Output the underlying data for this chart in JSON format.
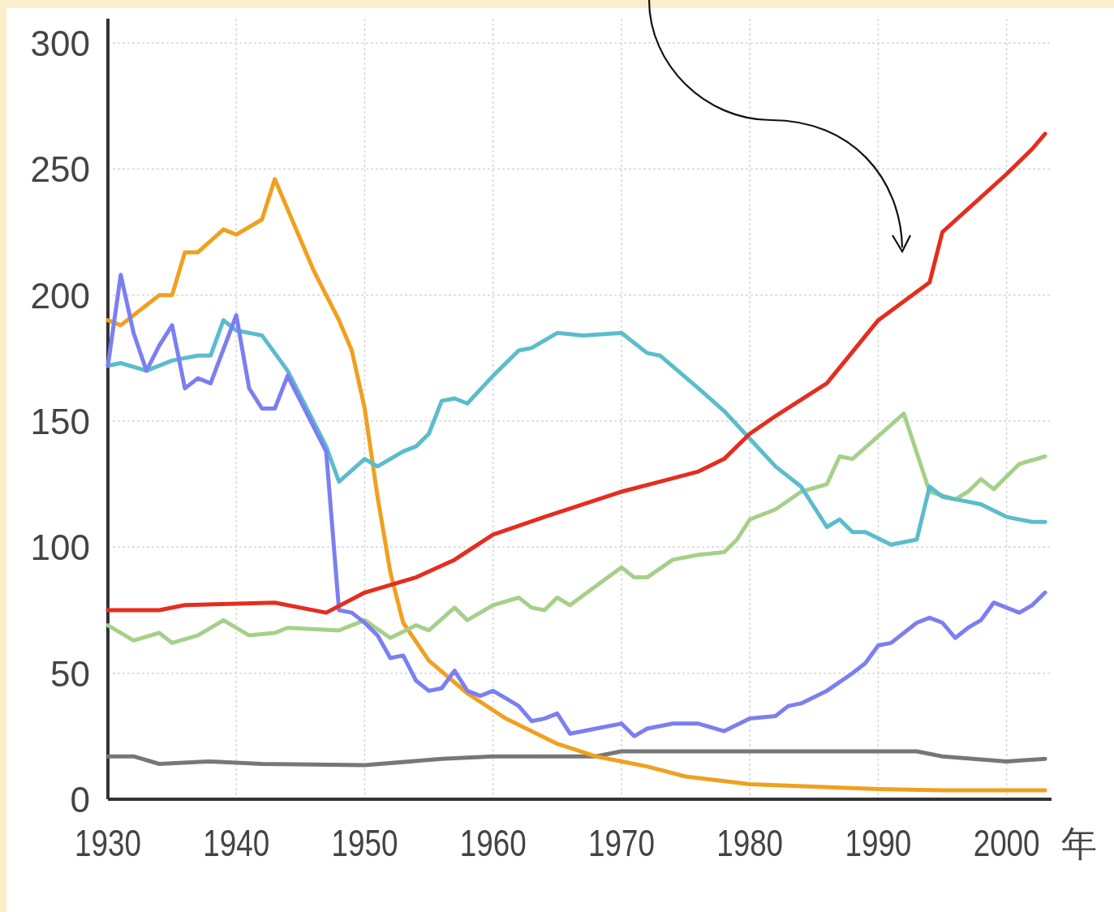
{
  "chart_data": {
    "type": "line",
    "xlabel": "年",
    "xlim": [
      1930,
      2003.5
    ],
    "ylim": [
      0,
      300
    ],
    "xticks": [
      1930,
      1940,
      1950,
      1960,
      1970,
      1980,
      1990,
      2000
    ],
    "yticks": [
      0,
      50,
      100,
      150,
      200,
      250,
      300
    ],
    "grid": true,
    "series": [
      {
        "color": "#777777",
        "x": [
          1930,
          1932,
          1934,
          1938,
          1942,
          1950,
          1956,
          1960,
          1968,
          1970,
          1993,
          1995,
          2000,
          2003
        ],
        "values": [
          17,
          17,
          14,
          15,
          14,
          13.5,
          16,
          17,
          17,
          19,
          19,
          17,
          15,
          16
        ]
      },
      {
        "color": "#f0a020",
        "x": [
          1930,
          1931,
          1934,
          1935,
          1936,
          1937,
          1939,
          1940,
          1942,
          1943,
          1946,
          1948,
          1949,
          1950,
          1951,
          1952,
          1953,
          1955,
          1958,
          1961,
          1965,
          1968,
          1972,
          1975,
          1980,
          1985,
          1990,
          1995,
          2003
        ],
        "values": [
          190,
          188,
          200,
          200,
          217,
          217,
          226,
          224,
          230,
          246,
          210,
          190,
          178,
          155,
          120,
          90,
          70,
          55,
          42,
          32,
          22,
          17,
          13,
          9,
          6,
          5,
          4,
          3.5,
          3.5
        ]
      },
      {
        "color": "#a6d08a",
        "x": [
          1930,
          1932,
          1934,
          1935,
          1937,
          1939,
          1941,
          1943,
          1944,
          1948,
          1950,
          1952,
          1954,
          1955,
          1957,
          1958,
          1960,
          1962,
          1963,
          1964,
          1965,
          1966,
          1970,
          1971,
          1972,
          1974,
          1976,
          1978,
          1979,
          1980,
          1982,
          1984,
          1986,
          1987,
          1988,
          1992,
          1994,
          1996,
          1997,
          1998,
          1999,
          2001,
          2003
        ],
        "values": [
          69,
          63,
          66,
          62,
          65,
          71,
          65,
          66,
          68,
          67,
          71,
          64,
          69,
          67,
          76,
          71,
          77,
          80,
          76,
          75,
          80,
          77,
          92,
          88,
          88,
          95,
          97,
          98,
          103,
          111,
          115,
          122,
          125,
          136,
          135,
          153,
          122,
          119,
          122,
          127,
          123,
          133,
          136
        ]
      },
      {
        "color": "#5bbccc",
        "x": [
          1930,
          1931,
          1933,
          1935,
          1937,
          1938,
          1939,
          1940,
          1942,
          1944,
          1947,
          1948,
          1950,
          1951,
          1953,
          1954,
          1955,
          1956,
          1957,
          1958,
          1960,
          1962,
          1963,
          1965,
          1967,
          1970,
          1972,
          1973,
          1976,
          1978,
          1980,
          1982,
          1984,
          1986,
          1987,
          1988,
          1989,
          1991,
          1993,
          1994,
          1995,
          1997,
          1998,
          2000,
          2002,
          2003
        ],
        "values": [
          172,
          173,
          170,
          174,
          176,
          176,
          190,
          186,
          184,
          170,
          140,
          126,
          135,
          132,
          138,
          140,
          145,
          158,
          159,
          157,
          168,
          178,
          179,
          185,
          184,
          185,
          177,
          176,
          163,
          154,
          143,
          132,
          124,
          108,
          111,
          106,
          106,
          101,
          103,
          124,
          120,
          118,
          117,
          112,
          110,
          110
        ]
      },
      {
        "color": "#7b7fef",
        "x": [
          1930,
          1931,
          1932,
          1933,
          1934,
          1935,
          1936,
          1937,
          1938,
          1940,
          1941,
          1942,
          1943,
          1944,
          1947,
          1948,
          1949,
          1950,
          1951,
          1952,
          1953,
          1954,
          1955,
          1956,
          1957,
          1958,
          1959,
          1960,
          1961,
          1962,
          1963,
          1964,
          1965,
          1966,
          1968,
          1970,
          1971,
          1972,
          1974,
          1976,
          1978,
          1980,
          1982,
          1983,
          1984,
          1986,
          1988,
          1989,
          1990,
          1991,
          1993,
          1994,
          1995,
          1996,
          1997,
          1998,
          1999,
          2000,
          2001,
          2002,
          2003
        ],
        "values": [
          172,
          208,
          185,
          170,
          180,
          188,
          163,
          167,
          165,
          192,
          163,
          155,
          155,
          168,
          138,
          75,
          74,
          70,
          65,
          56,
          57,
          47,
          43,
          44,
          51,
          43,
          41,
          43,
          40,
          37,
          31,
          32,
          34,
          26,
          28,
          30,
          25,
          28,
          30,
          30,
          27,
          32,
          33,
          37,
          38,
          43,
          50,
          54,
          61,
          62,
          70,
          72,
          70,
          64,
          68,
          71,
          78,
          76,
          74,
          77,
          82
        ]
      },
      {
        "color": "#e52d1f",
        "x": [
          1930,
          1934,
          1936,
          1943,
          1947,
          1950,
          1954,
          1957,
          1960,
          1964,
          1970,
          1973,
          1976,
          1978,
          1980,
          1982,
          1986,
          1990,
          1994,
          1995,
          2000,
          2002,
          2003
        ],
        "values": [
          75,
          75,
          77,
          78,
          74,
          82,
          88,
          95,
          105,
          112,
          122,
          126,
          130,
          135,
          145,
          152,
          165,
          190,
          205,
          225,
          248,
          258,
          264
        ]
      }
    ]
  }
}
